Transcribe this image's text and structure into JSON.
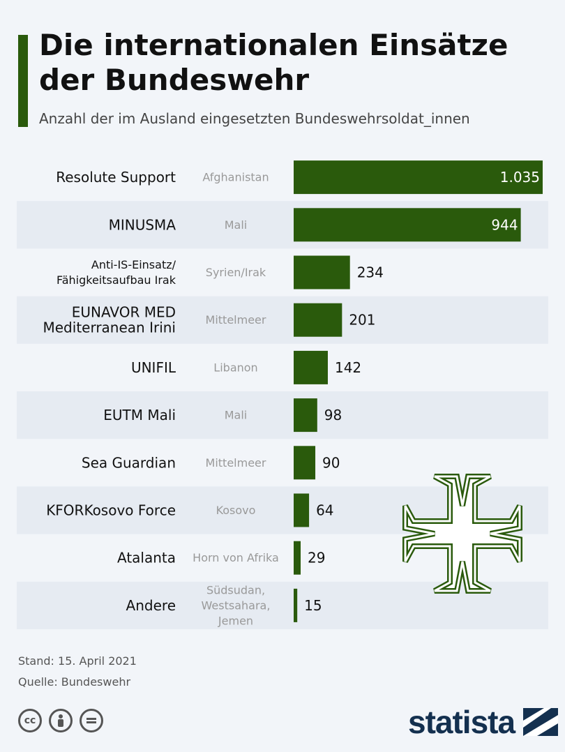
{
  "header": {
    "title": "Die internationalen Einsätze der Bundeswehr",
    "subtitle": "Anzahl der im Ausland eingesetzten Bundeswehrsoldat_innen"
  },
  "chart_data": {
    "type": "bar",
    "orientation": "horizontal",
    "title": "Die internationalen Einsätze der Bundeswehr",
    "subtitle": "Anzahl der im Ausland eingesetzten Bundeswehrsoldat_innen",
    "categories": [
      [
        "Resolute Support"
      ],
      [
        "MINUSMA"
      ],
      [
        "Anti-IS-Einsatz/",
        "Fähigkeitsaufbau Irak"
      ],
      [
        "EUNAVOR MED",
        "Mediterranean Irini"
      ],
      [
        "UNIFIL"
      ],
      [
        "EUTM Mali"
      ],
      [
        "Sea Guardian"
      ],
      [
        "KFORKosovo Force"
      ],
      [
        "Atalanta"
      ],
      [
        "Andere"
      ]
    ],
    "regions": [
      [
        "Afghanistan"
      ],
      [
        "Mali"
      ],
      [
        "Syrien/Irak"
      ],
      [
        "Mittelmeer"
      ],
      [
        "Libanon"
      ],
      [
        "Mali"
      ],
      [
        "Mittelmeer"
      ],
      [
        "Kosovo"
      ],
      [
        "Horn von Afrika"
      ],
      [
        "Südsudan,",
        "Westsahara,",
        "Jemen"
      ]
    ],
    "values": [
      1035,
      944,
      234,
      201,
      142,
      98,
      90,
      64,
      29,
      15
    ],
    "value_labels": [
      "1.035",
      "944",
      "234",
      "201",
      "142",
      "98",
      "90",
      "64",
      "29",
      "15"
    ],
    "xlim": [
      0,
      1035
    ],
    "bar_color": "#2a5a0c",
    "stripe_color": "#e6ebf2",
    "grid": false,
    "legend": "none"
  },
  "footer": {
    "stand": "Stand: 15. April 2021",
    "quelle": "Quelle: Bundeswehr",
    "brand": "statista",
    "license_icons": [
      "cc-icon",
      "by-icon",
      "nd-icon"
    ]
  },
  "watermark": {
    "name": "iron-cross-icon",
    "color": "#2a5a0c"
  }
}
